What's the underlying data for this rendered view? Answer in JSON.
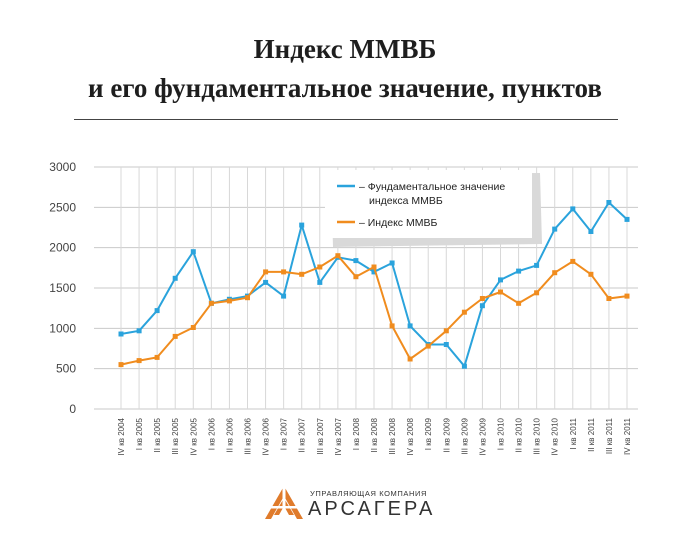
{
  "title_line1": "Индекс ММВБ",
  "title_line2": "и его фундаментальное значение, пунктов",
  "logo": {
    "subtitle": "УПРАВЛЯЮЩАЯ КОМПАНИЯ",
    "name": "АРСАГЕРА",
    "icon": "arsagera-logo-icon",
    "color": "#e07b2b"
  },
  "chart_data": {
    "type": "line",
    "ylim": [
      0,
      3000
    ],
    "yticks": [
      0,
      500,
      1000,
      1500,
      2000,
      2500,
      3000
    ],
    "grid": true,
    "legend_position": "top-right",
    "categories": [
      "IV кв 2004",
      "I кв 2005",
      "II кв 2005",
      "III кв 2005",
      "IV кв 2005",
      "I кв 2006",
      "II кв 2006",
      "III кв 2006",
      "IV кв 2006",
      "I кв 2007",
      "II кв 2007",
      "III кв 2007",
      "IV кв 2007",
      "I кв 2008",
      "II кв 2008",
      "III кв 2008",
      "IV кв 2008",
      "I кв 2009",
      "II кв 2009",
      "III кв 2009",
      "IV кв 2009",
      "I кв 2010",
      "II кв 2010",
      "III кв 2010",
      "IV кв 2010",
      "I кв 2011",
      "II кв 2011",
      "III кв 2011",
      "IV кв 2011"
    ],
    "series": [
      {
        "name": "– Фундаментальное значение индекса ММВБ",
        "color": "#2aa3dc",
        "values": [
          930,
          970,
          1220,
          1620,
          1950,
          1310,
          1360,
          1400,
          1570,
          1400,
          2280,
          1570,
          1880,
          1840,
          1700,
          1810,
          1030,
          800,
          800,
          530,
          1280,
          1600,
          1710,
          1780,
          2230,
          2480,
          2200,
          2560,
          2350
        ]
      },
      {
        "name": "– Индекс ММВБ",
        "color": "#f08c1e",
        "values": [
          550,
          600,
          640,
          900,
          1010,
          1310,
          1340,
          1380,
          1700,
          1700,
          1670,
          1760,
          1900,
          1640,
          1760,
          1030,
          620,
          780,
          970,
          1200,
          1370,
          1450,
          1310,
          1440,
          1690,
          1830,
          1670,
          1370,
          1400
        ]
      }
    ]
  }
}
